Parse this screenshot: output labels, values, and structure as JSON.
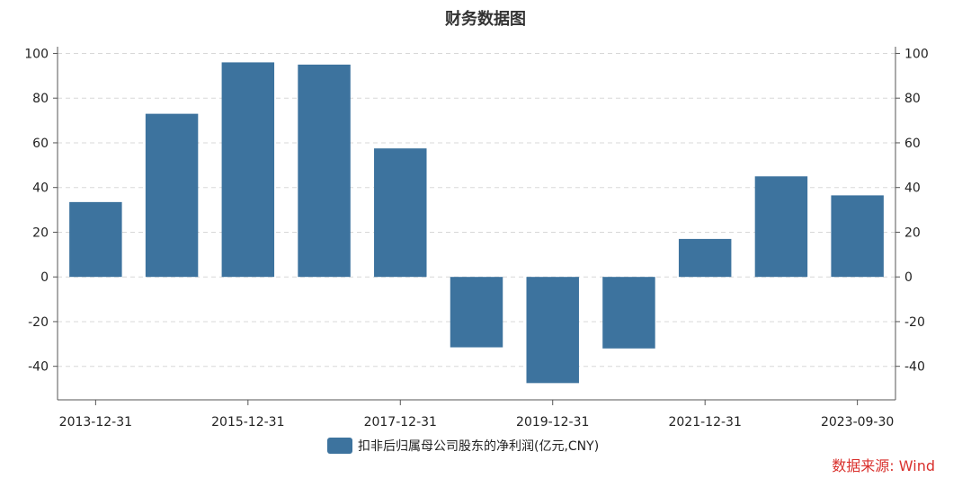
{
  "chart_data": {
    "type": "bar",
    "title": "财务数据图",
    "categories": [
      "2013-12-31",
      "2014-12-31",
      "2015-12-31",
      "2016-12-31",
      "2017-12-31",
      "2018-12-31",
      "2019-12-31",
      "2020-12-31",
      "2021-12-31",
      "2022-12-31",
      "2023-09-30"
    ],
    "x_tick_labels": [
      "2013-12-31",
      "2015-12-31",
      "2017-12-31",
      "2019-12-31",
      "2021-12-31",
      "2023-09-30"
    ],
    "series": [
      {
        "name": "扣非后归属母公司股东的净利润(亿元,CNY)",
        "values": [
          33.5,
          73,
          96,
          95,
          57.5,
          -31.5,
          -47.5,
          -32,
          17,
          45,
          36.5
        ],
        "color": "#3d739e"
      }
    ],
    "ylim": [
      -55,
      103
    ],
    "y_ticks": [
      100,
      80,
      60,
      40,
      20,
      0,
      -20,
      -40
    ],
    "y_tick_labels": [
      "100",
      "80",
      "60",
      "40",
      "20",
      "0",
      "-20",
      "-40"
    ],
    "grid": true,
    "legend_position": "bottom-center",
    "source": "数据来源: Wind",
    "source_color": "#d9302c"
  }
}
